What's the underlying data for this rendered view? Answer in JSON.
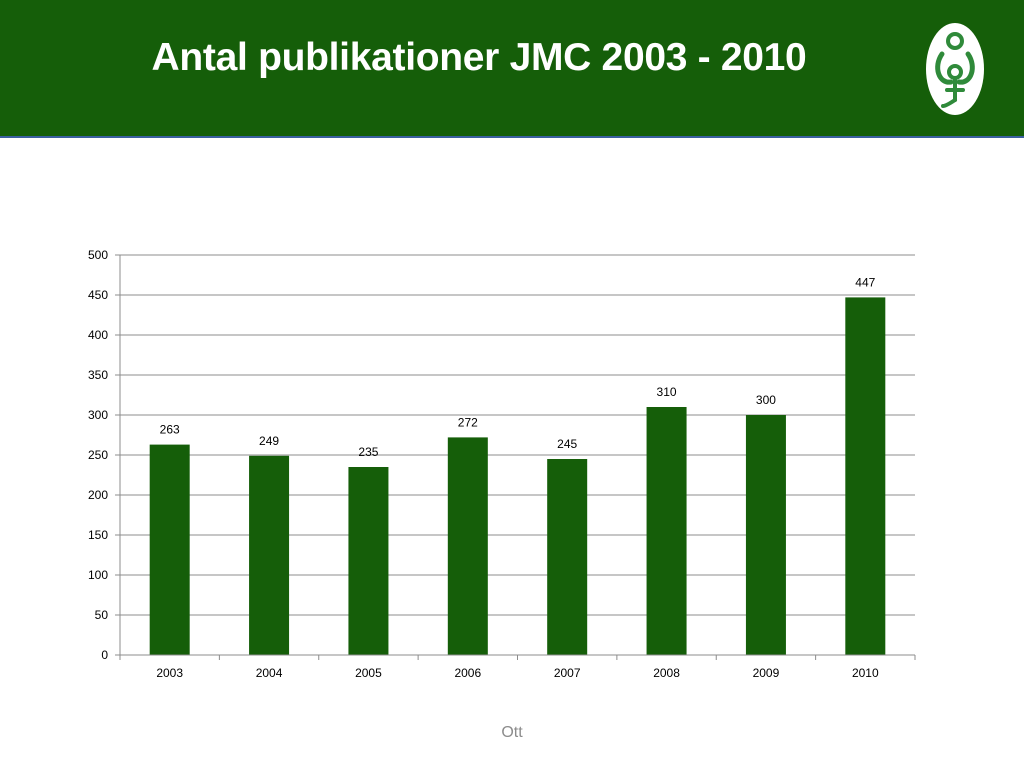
{
  "slide": {
    "title": "Antal publikationer JMC 2003 - 2010",
    "footer": "Ott",
    "header_color": "#155e09",
    "logo_icon": "jmc-figure-logo-icon"
  },
  "chart_data": {
    "type": "bar",
    "title": "",
    "xlabel": "",
    "ylabel": "",
    "categories": [
      "2003",
      "2004",
      "2005",
      "2006",
      "2007",
      "2008",
      "2009",
      "2010"
    ],
    "values": [
      263,
      249,
      235,
      272,
      245,
      310,
      300,
      447
    ],
    "ylim": [
      0,
      500
    ],
    "yticks": [
      0,
      50,
      100,
      150,
      200,
      250,
      300,
      350,
      400,
      450,
      500
    ],
    "grid": true,
    "legend": "none",
    "data_labels": true,
    "bar_color": "#155e09"
  }
}
